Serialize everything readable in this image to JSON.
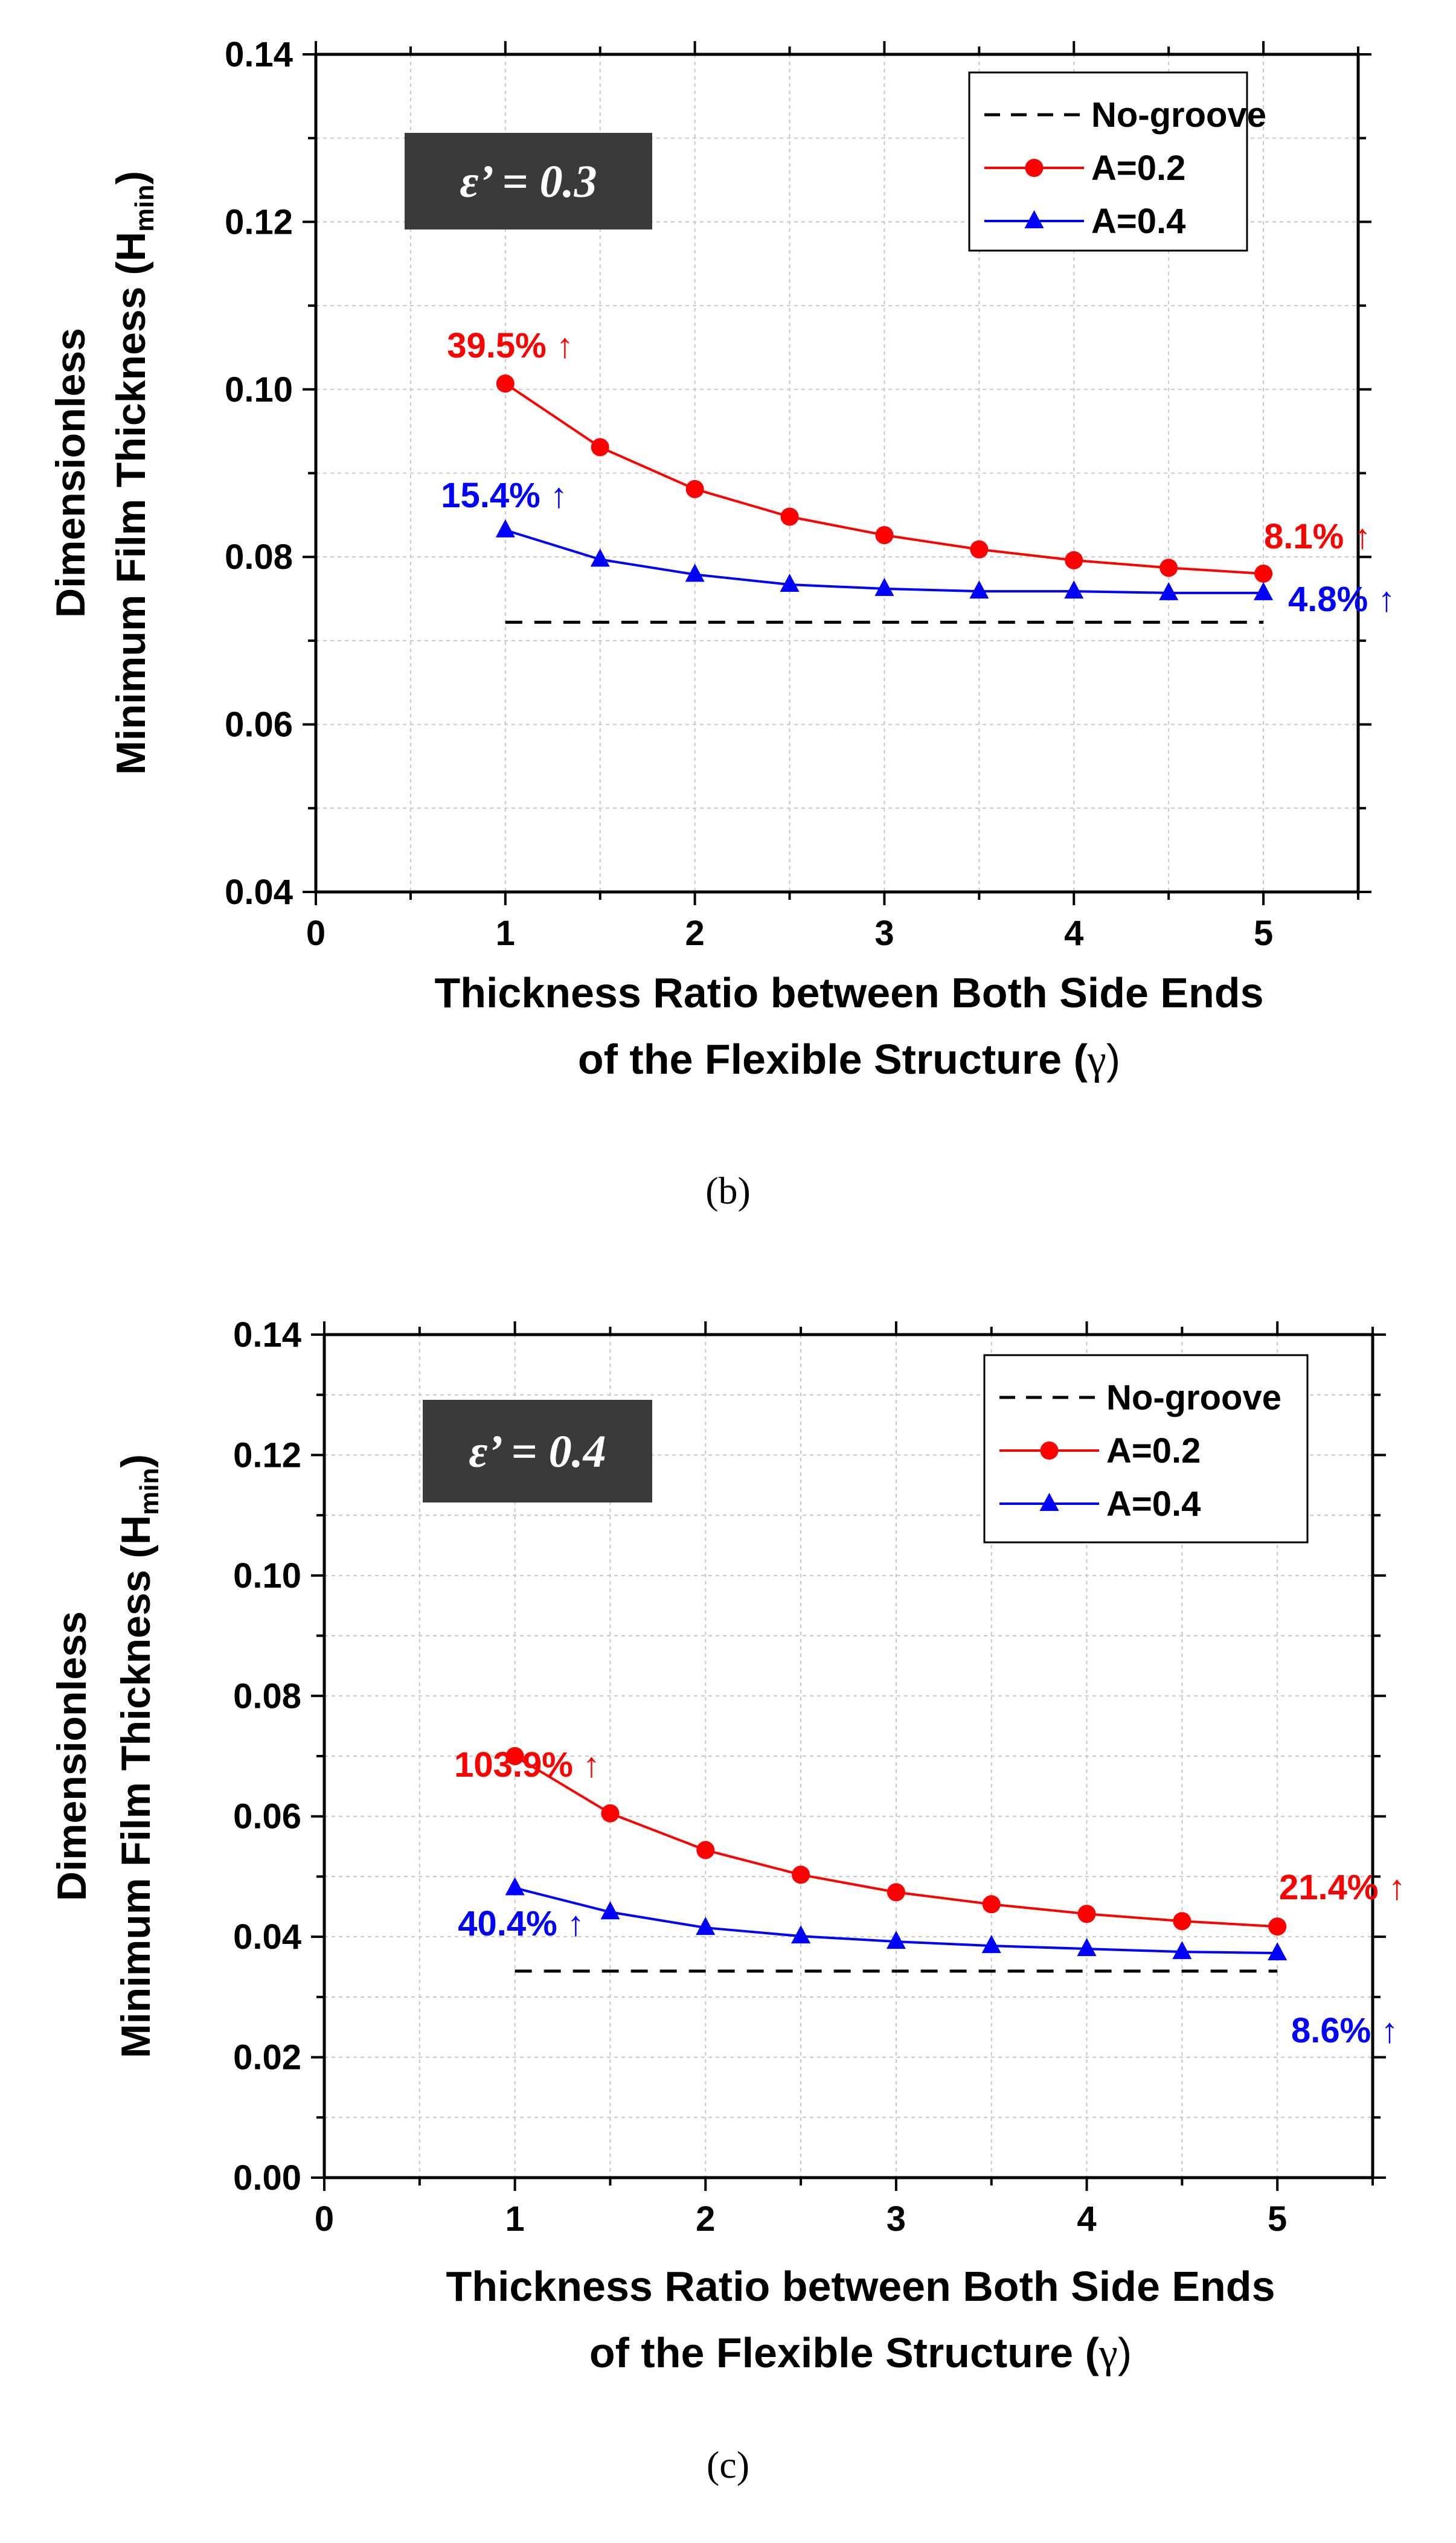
{
  "chart_data": [
    {
      "type": "line",
      "panel_label": "(b)",
      "badge": "ε’ = 0.3",
      "ylabel_line1": "Dimensionless",
      "ylabel_line2_main": "Minimum Film Thickness (H",
      "ylabel_line2_sub": "min",
      "ylabel_line2_end": ")",
      "xlabel_line1": "Thickness Ratio between Both Side Ends",
      "xlabel_line2_main": "of the Flexible Structure (",
      "xlabel_line2_symbol": "γ",
      "xlabel_line2_end": ")",
      "xlim": [
        0,
        5.5
      ],
      "ylim": [
        0.04,
        0.14
      ],
      "xticks": [
        0,
        1,
        2,
        3,
        4,
        5
      ],
      "xtick_labels": [
        "0",
        "1",
        "2",
        "3",
        "4",
        "5"
      ],
      "yticks": [
        0.04,
        0.06,
        0.08,
        0.1,
        0.12,
        0.14
      ],
      "ytick_labels": [
        "0.04",
        "0.06",
        "0.08",
        "0.10",
        "0.12",
        "0.14"
      ],
      "grid": true,
      "legend_position": "top-right",
      "x": [
        1,
        1.5,
        2,
        2.5,
        3,
        3.5,
        4,
        4.5,
        5
      ],
      "series": [
        {
          "name": "No-groove",
          "color": "#000000",
          "style": "dashed",
          "marker": "none",
          "values": [
            0.0722,
            0.0722,
            0.0722,
            0.0722,
            0.0722,
            0.0722,
            0.0722,
            0.0722,
            0.0722
          ]
        },
        {
          "name": "A=0.2",
          "color": "#ff0000",
          "style": "solid",
          "marker": "circle",
          "values": [
            0.1007,
            0.0931,
            0.0881,
            0.0848,
            0.0826,
            0.0809,
            0.0796,
            0.0787,
            0.078
          ]
        },
        {
          "name": "A=0.4",
          "color": "#0000ff",
          "style": "solid",
          "marker": "triangle",
          "values": [
            0.0832,
            0.0797,
            0.0779,
            0.0767,
            0.0762,
            0.0759,
            0.0759,
            0.0757,
            0.0757
          ]
        }
      ],
      "annotations": [
        {
          "text": "39.5% ↑",
          "color": "#ff0000"
        },
        {
          "text": "15.4% ↑",
          "color": "#0000ff"
        },
        {
          "text": "8.1% ↑",
          "color": "#ff0000"
        },
        {
          "text": "4.8% ↑",
          "color": "#0000ff"
        }
      ]
    },
    {
      "type": "line",
      "panel_label": "(c)",
      "badge": "ε’ = 0.4",
      "ylabel_line1": "Dimensionless",
      "ylabel_line2_main": "Minimum Film Thickness (H",
      "ylabel_line2_sub": "min",
      "ylabel_line2_end": ")",
      "xlabel_line1": "Thickness Ratio between Both Side Ends",
      "xlabel_line2_main": "of the Flexible Structure (",
      "xlabel_line2_symbol": "γ",
      "xlabel_line2_end": ")",
      "xlim": [
        0,
        5.5
      ],
      "ylim": [
        0.0,
        0.14
      ],
      "xticks": [
        0,
        1,
        2,
        3,
        4,
        5
      ],
      "xtick_labels": [
        "0",
        "1",
        "2",
        "3",
        "4",
        "5"
      ],
      "yticks": [
        0.0,
        0.02,
        0.04,
        0.06,
        0.08,
        0.1,
        0.12,
        0.14
      ],
      "ytick_labels": [
        "0.00",
        "0.02",
        "0.04",
        "0.06",
        "0.08",
        "0.10",
        "0.12",
        "0.14"
      ],
      "grid": true,
      "legend_position": "top-right",
      "x": [
        1,
        1.5,
        2,
        2.5,
        3,
        3.5,
        4,
        4.5,
        5
      ],
      "series": [
        {
          "name": "No-groove",
          "color": "#000000",
          "style": "dashed",
          "marker": "none",
          "values": [
            0.0343,
            0.0343,
            0.0343,
            0.0343,
            0.0343,
            0.0343,
            0.0343,
            0.0343,
            0.0343
          ]
        },
        {
          "name": "A=0.2",
          "color": "#ff0000",
          "style": "solid",
          "marker": "circle",
          "values": [
            0.07,
            0.0605,
            0.0544,
            0.0503,
            0.0474,
            0.0454,
            0.0438,
            0.0426,
            0.0417
          ]
        },
        {
          "name": "A=0.4",
          "color": "#0000ff",
          "style": "solid",
          "marker": "triangle",
          "values": [
            0.0481,
            0.0441,
            0.0415,
            0.0401,
            0.0392,
            0.0385,
            0.038,
            0.0375,
            0.0373
          ]
        }
      ],
      "annotations": [
        {
          "text": "103.9% ↑",
          "color": "#ff0000"
        },
        {
          "text": "40.4% ↑",
          "color": "#0000ff"
        },
        {
          "text": "21.4% ↑",
          "color": "#ff0000"
        },
        {
          "text": "8.6% ↑",
          "color": "#0000ff"
        }
      ]
    }
  ]
}
